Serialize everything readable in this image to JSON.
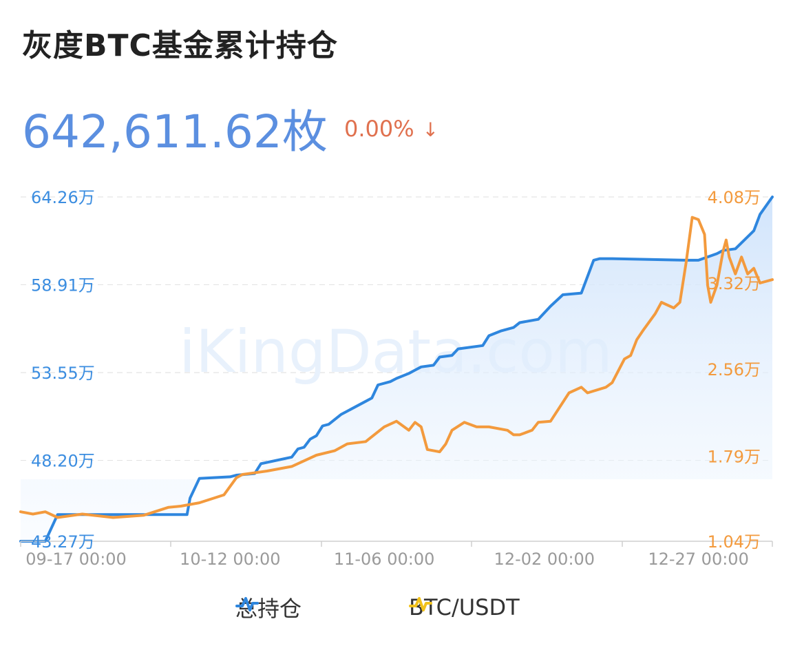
{
  "header": {
    "title": "灰度BTC基金累计持仓",
    "value": "642,611.62枚",
    "change": "0.00%",
    "change_arrow": "↓"
  },
  "watermark": "iKingData.com",
  "legend": {
    "items": [
      {
        "label": "总持仓",
        "color": "#2e86de"
      },
      {
        "label": "BTC/USDT",
        "color": "#f39a3d"
      }
    ]
  },
  "colors": {
    "left_axis": "#3b8de0",
    "right_axis": "#f39a3d",
    "grid": "#e3e3e3"
  },
  "chart_data": {
    "type": "line",
    "x_range": [
      "09-08",
      "01-04"
    ],
    "xtick_labels": [
      "09-17 00:00",
      "10-12 00:00",
      "11-06 00:00",
      "12-02 00:00",
      "12-27 00:00"
    ],
    "xtick_days": [
      9,
      34,
      59,
      85,
      110
    ],
    "y_left": {
      "ticks": [
        "43.27万",
        "48.20万",
        "53.55万",
        "58.91万",
        "64.26万"
      ],
      "values": [
        43.27,
        48.2,
        53.55,
        58.91,
        64.26
      ],
      "range": [
        43.27,
        64.26
      ]
    },
    "y_right": {
      "ticks": [
        "1.04万",
        "1.79万",
        "2.56万",
        "3.32万",
        "4.08万"
      ],
      "values": [
        1.04,
        1.79,
        2.56,
        3.32,
        4.08
      ],
      "range": [
        1.04,
        4.08
      ]
    },
    "series": [
      {
        "name": "总持仓",
        "axis": "left",
        "area": true,
        "days": [
          0,
          4,
          6,
          27,
          27.5,
          29,
          34,
          35,
          38,
          39,
          44,
          45,
          46,
          47,
          48,
          49,
          50,
          52,
          53,
          56,
          57,
          58,
          60,
          61,
          63,
          64,
          65,
          67,
          68,
          70,
          71,
          75,
          76,
          78,
          80,
          81,
          84,
          86,
          88,
          91,
          93,
          94,
          96,
          108,
          110,
          113,
          114,
          116,
          119,
          120,
          122
        ],
        "values": [
          43.27,
          43.27,
          44.9,
          44.9,
          45.9,
          47.1,
          47.2,
          47.3,
          47.4,
          48.0,
          48.4,
          48.9,
          49.0,
          49.5,
          49.7,
          50.3,
          50.4,
          51.0,
          51.2,
          51.8,
          52.0,
          52.8,
          53.0,
          53.2,
          53.5,
          53.7,
          53.9,
          54.0,
          54.5,
          54.6,
          55.0,
          55.2,
          55.8,
          56.1,
          56.3,
          56.6,
          56.8,
          57.6,
          58.3,
          58.4,
          60.4,
          60.5,
          60.5,
          60.4,
          60.4,
          60.8,
          61.0,
          61.1,
          62.2,
          63.2,
          64.26
        ]
      },
      {
        "name": "BTC/USDT",
        "axis": "right",
        "area": false,
        "days": [
          0,
          2,
          4,
          6,
          10,
          15,
          20,
          24,
          26,
          29,
          33,
          35,
          36,
          40,
          44,
          48,
          51,
          53,
          56,
          59,
          61,
          63,
          64,
          65,
          66,
          68,
          69,
          70,
          72,
          74,
          76,
          79,
          80,
          81,
          83,
          84,
          86,
          89,
          91,
          92,
          95,
          96,
          98,
          99,
          100,
          101,
          103,
          104,
          106,
          107,
          108,
          109,
          110,
          111,
          111.5,
          112,
          113,
          114,
          114.5,
          115,
          116,
          117,
          118,
          119,
          120,
          122
        ],
        "values": [
          1.3,
          1.28,
          1.3,
          1.25,
          1.28,
          1.25,
          1.27,
          1.34,
          1.35,
          1.38,
          1.45,
          1.6,
          1.63,
          1.66,
          1.7,
          1.8,
          1.84,
          1.9,
          1.92,
          2.05,
          2.1,
          2.02,
          2.09,
          2.05,
          1.85,
          1.83,
          1.9,
          2.02,
          2.09,
          2.05,
          2.05,
          2.02,
          1.98,
          1.98,
          2.02,
          2.09,
          2.1,
          2.35,
          2.4,
          2.35,
          2.4,
          2.44,
          2.65,
          2.68,
          2.82,
          2.9,
          3.05,
          3.15,
          3.1,
          3.15,
          3.5,
          3.9,
          3.88,
          3.75,
          3.3,
          3.15,
          3.3,
          3.6,
          3.7,
          3.55,
          3.4,
          3.55,
          3.4,
          3.45,
          3.32,
          3.35
        ]
      }
    ],
    "grid": true,
    "legend_position": "bottom"
  }
}
